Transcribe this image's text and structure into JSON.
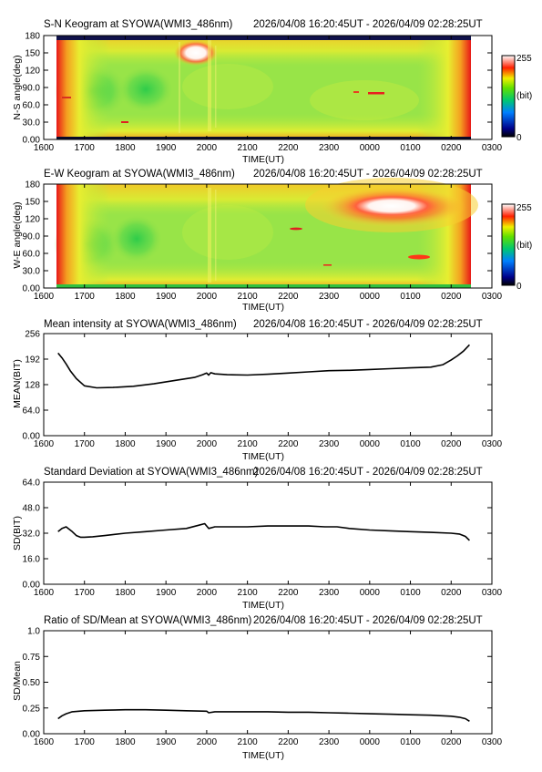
{
  "time_range": "2026/04/08 16:20:45UT - 2026/04/09 02:28:25UT",
  "colors": {
    "line": "#000000",
    "axis": "#000000",
    "night_band": "#10124a"
  },
  "chart_data": [
    {
      "id": "sn",
      "type": "heatmap",
      "title": "S-N Keogram at SYOWA(WMI3_486nm)",
      "xlabel": "TIME(UT)",
      "ylabel": "N-S angle(deg)",
      "x_ticks": [
        "1600",
        "1700",
        "1800",
        "1900",
        "2000",
        "2100",
        "2200",
        "2300",
        "0000",
        "0100",
        "0200",
        "0300"
      ],
      "y_ticks": [
        "0.00",
        "30.0",
        "60.0",
        "90.0",
        "120",
        "150",
        "180"
      ],
      "ylim": [
        0,
        180
      ],
      "colorbar": {
        "max": "255",
        "unit": "(bit)",
        "min": "0"
      }
    },
    {
      "id": "ew",
      "type": "heatmap",
      "title": "E-W Keogram at SYOWA(WMI3_486nm)",
      "xlabel": "TIME(UT)",
      "ylabel": "W-E angle(deg)",
      "x_ticks": [
        "1600",
        "1700",
        "1800",
        "1900",
        "2000",
        "2100",
        "2200",
        "2300",
        "0000",
        "0100",
        "0200",
        "0300"
      ],
      "y_ticks": [
        "0.00",
        "30.0",
        "60.0",
        "90.0",
        "120",
        "150",
        "180"
      ],
      "ylim": [
        0,
        180
      ],
      "colorbar": {
        "max": "255",
        "unit": "(bit)",
        "min": "0"
      }
    },
    {
      "id": "mean",
      "type": "line",
      "title": "Mean intensity at SYOWA(WMI3_486nm)",
      "xlabel": "TIME(UT)",
      "ylabel": "MEAN(BIT)",
      "x_ticks": [
        "1600",
        "1700",
        "1800",
        "1900",
        "2000",
        "2100",
        "2200",
        "2300",
        "0000",
        "0100",
        "0200",
        "0300"
      ],
      "y_ticks": [
        "0.00",
        "64.0",
        "128",
        "192",
        "256"
      ],
      "xlim": [
        0,
        11
      ],
      "ylim": [
        0,
        256
      ],
      "series": [
        {
          "x": [
            0.35,
            0.45,
            0.55,
            0.65,
            0.8,
            1.0,
            1.3,
            1.7,
            2.2,
            2.7,
            3.2,
            3.7,
            3.9,
            4.0,
            4.05,
            4.1,
            4.2,
            4.5,
            5.0,
            5.5,
            6.0,
            6.5,
            7.0,
            7.5,
            8.0,
            8.5,
            9.0,
            9.5,
            9.8,
            10.0,
            10.15,
            10.3,
            10.45
          ],
          "y": [
            207,
            195,
            180,
            163,
            143,
            125,
            120,
            121,
            124,
            130,
            138,
            146,
            153,
            157,
            152,
            158,
            155,
            153,
            152,
            154,
            157,
            160,
            163,
            164,
            166,
            168,
            170,
            172,
            178,
            190,
            200,
            212,
            228
          ]
        }
      ]
    },
    {
      "id": "sd",
      "type": "line",
      "title": "Standard Deviation at SYOWA(WMI3_486nm)",
      "xlabel": "TIME(UT)",
      "ylabel": "SD(BIT)",
      "x_ticks": [
        "1600",
        "1700",
        "1800",
        "1900",
        "2000",
        "2100",
        "2200",
        "2300",
        "0000",
        "0100",
        "0200",
        "0300"
      ],
      "y_ticks": [
        "0.00",
        "16.0",
        "32.0",
        "48.0",
        "64.0"
      ],
      "xlim": [
        0,
        11
      ],
      "ylim": [
        0,
        64
      ],
      "series": [
        {
          "x": [
            0.35,
            0.45,
            0.55,
            0.6,
            0.7,
            0.8,
            0.9,
            1.0,
            1.2,
            1.5,
            2.0,
            2.5,
            3.0,
            3.5,
            3.8,
            3.95,
            4.05,
            4.2,
            4.6,
            5.0,
            5.5,
            6.0,
            6.5,
            6.9,
            7.2,
            7.5,
            8.0,
            8.5,
            9.0,
            9.5,
            10.0,
            10.2,
            10.35,
            10.45
          ],
          "y": [
            33,
            35,
            36,
            35,
            33,
            30.5,
            29.5,
            29.5,
            29.8,
            30.5,
            32,
            33,
            34,
            35,
            37,
            38,
            35,
            36,
            36,
            36,
            36.5,
            36.5,
            36.5,
            36,
            36,
            35,
            34,
            33.5,
            33,
            32.5,
            32,
            31.5,
            30,
            27.5
          ]
        }
      ]
    },
    {
      "id": "ratio",
      "type": "line",
      "title": "Ratio of SD/Mean at SYOWA(WMI3_486nm)",
      "xlabel": "TIME(UT)",
      "ylabel": "SD/Mean",
      "x_ticks": [
        "1600",
        "1700",
        "1800",
        "1900",
        "2000",
        "2100",
        "2200",
        "2300",
        "0000",
        "0100",
        "0200",
        "0300"
      ],
      "y_ticks": [
        "0.00",
        "0.25",
        "0.50",
        "0.75",
        "1.0"
      ],
      "xlim": [
        0,
        11
      ],
      "ylim": [
        0,
        1.03
      ],
      "series": [
        {
          "x": [
            0.35,
            0.45,
            0.55,
            0.7,
            1.0,
            1.5,
            2.0,
            2.5,
            3.0,
            3.5,
            4.0,
            4.05,
            4.2,
            4.5,
            5.0,
            5.5,
            6.0,
            6.5,
            7.0,
            7.5,
            8.0,
            8.5,
            9.0,
            9.5,
            10.0,
            10.2,
            10.35,
            10.45
          ],
          "y": [
            0.15,
            0.18,
            0.2,
            0.22,
            0.23,
            0.235,
            0.24,
            0.24,
            0.235,
            0.23,
            0.225,
            0.21,
            0.22,
            0.22,
            0.22,
            0.22,
            0.215,
            0.215,
            0.21,
            0.205,
            0.2,
            0.195,
            0.19,
            0.185,
            0.175,
            0.165,
            0.15,
            0.125
          ]
        }
      ]
    }
  ]
}
